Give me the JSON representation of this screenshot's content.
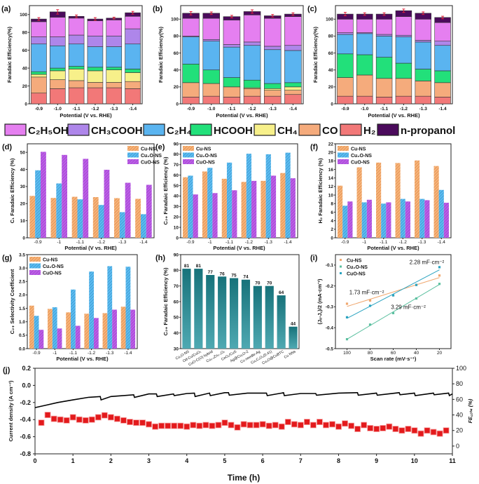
{
  "colors": {
    "C2H5OH": "#e57ff0",
    "CH3COOH": "#ae86ea",
    "C2H4": "#5ab4f0",
    "HCOOH": "#22e07a",
    "CH4": "#f7f08a",
    "CO": "#f5ab7c",
    "H2": "#f27878",
    "n-propanol": "#4b0b5c",
    "Cu-NS": "#f2a15e",
    "Cu2O-NS": "#4fb3ea",
    "CuO-NS": "#b455e0",
    "bar_h": "#1f7f86",
    "error": "#e0203a",
    "current": "#000000",
    "fe": "#e31a1c",
    "i_Cu-NS": "#f0a870",
    "i_Cu2O-NS": "#5cc0a0",
    "i_CuO-NS": "#2aa3c0"
  },
  "shared_legend": {
    "keys": [
      "C2H5OH",
      "CH3COOH",
      "C2H4",
      "HCOOH",
      "CH4",
      "CO",
      "H2",
      "n-propanol"
    ],
    "labels": [
      "C₂H₅OH",
      "CH₃COOH",
      "C₂H₄",
      "HCOOH",
      "CH₄",
      "CO",
      "H₂",
      "n-propanol"
    ]
  },
  "chart_data": [
    {
      "panel": "(a)",
      "type": "bar",
      "stacked": true,
      "ylabel": "Faradaic Efficiency(%)",
      "xlabel": "Potential (V vs. RHE)",
      "categories": [
        "-0.9",
        "-1.0",
        "-1.1",
        "-1.2",
        "-1.3",
        "-1.4"
      ],
      "ylim": [
        0,
        110
      ],
      "yticks": [
        0,
        20,
        40,
        60,
        80,
        100
      ],
      "series": [
        {
          "name": "H₂",
          "key": "H2",
          "values": [
            12,
            17,
            18,
            18,
            18,
            17
          ]
        },
        {
          "name": "CO",
          "key": "CO",
          "values": [
            18,
            10,
            8,
            6,
            6,
            8
          ]
        },
        {
          "name": "CH₄",
          "key": "CH4",
          "values": [
            3,
            10,
            13,
            13,
            14,
            10
          ]
        },
        {
          "name": "HCOOH",
          "key": "HCOOH",
          "values": [
            3,
            3,
            3,
            4,
            3,
            4
          ]
        },
        {
          "name": "C₂H₄",
          "key": "C2H4",
          "values": [
            31,
            25,
            25,
            23,
            23,
            28
          ]
        },
        {
          "name": "CH₃COOH",
          "key": "CH3COOH",
          "values": [
            8,
            10,
            10,
            12,
            12,
            17
          ]
        },
        {
          "name": "C₂H₅OH",
          "key": "C2H5OH",
          "values": [
            17,
            22,
            19,
            17,
            18,
            14
          ]
        },
        {
          "name": "n-propanol",
          "key": "n-propanol",
          "values": [
            3,
            6,
            2,
            2,
            2,
            4
          ]
        }
      ],
      "error": [
        1.5,
        2.5,
        1.5,
        1.5,
        1,
        1.5
      ]
    },
    {
      "panel": "(b)",
      "type": "bar",
      "stacked": true,
      "ylabel": "Faradaic Efficiency(%)",
      "xlabel": "Potential (V vs. RHE)",
      "categories": [
        "-0.9",
        "-1.0",
        "-1.1",
        "-1.2",
        "-1.3",
        "-1.4"
      ],
      "ylim": [
        0,
        116
      ],
      "yticks": [
        0,
        20,
        40,
        60,
        80,
        100
      ],
      "series": [
        {
          "name": "H₂",
          "key": "H2",
          "values": [
            8,
            9,
            8,
            9,
            9,
            11
          ]
        },
        {
          "name": "CO",
          "key": "CO",
          "values": [
            17,
            15,
            12,
            9,
            7,
            5
          ]
        },
        {
          "name": "CH₄",
          "key": "CH4",
          "values": [
            0,
            0,
            0,
            1,
            2,
            4
          ]
        },
        {
          "name": "HCOOH",
          "key": "HCOOH",
          "values": [
            22,
            16,
            11,
            9,
            6,
            5
          ]
        },
        {
          "name": "C₂H₄",
          "key": "C2H4",
          "values": [
            32,
            34,
            36,
            41,
            40,
            38
          ]
        },
        {
          "name": "CH₃COOH",
          "key": "CH3COOH",
          "values": [
            1,
            2,
            3,
            4,
            4,
            6
          ]
        },
        {
          "name": "C₂H₅OH",
          "key": "C2H5OH",
          "values": [
            21,
            25,
            29,
            32,
            33,
            34
          ]
        },
        {
          "name": "n-propanol",
          "key": "n-propanol",
          "values": [
            6,
            6,
            4,
            4,
            3,
            3
          ]
        }
      ],
      "error": [
        2,
        1.5,
        1.5,
        2,
        1.5,
        1.5
      ]
    },
    {
      "panel": "(c)",
      "type": "bar",
      "stacked": true,
      "ylabel": "Faradaic Efficiency(%)",
      "xlabel": "Potential (V vs. RHE)",
      "categories": [
        "-0.9",
        "-1.0",
        "-1.1",
        "-1.2",
        "-1.3",
        "-1.4"
      ],
      "ylim": [
        0,
        116
      ],
      "yticks": [
        0,
        20,
        40,
        60,
        80,
        100
      ],
      "series": [
        {
          "name": "H₂",
          "key": "H2",
          "values": [
            9,
            9,
            8,
            9,
            9,
            8
          ]
        },
        {
          "name": "CO",
          "key": "CO",
          "values": [
            22,
            25,
            22,
            21,
            18,
            17
          ]
        },
        {
          "name": "CH₄",
          "key": "CH4",
          "values": [
            0,
            0,
            0,
            0,
            0,
            0
          ]
        },
        {
          "name": "HCOOH",
          "key": "HCOOH",
          "values": [
            28,
            24,
            25,
            18,
            14,
            14
          ]
        },
        {
          "name": "C₂H₄",
          "key": "C2H4",
          "values": [
            23,
            25,
            25,
            31,
            32,
            30
          ]
        },
        {
          "name": "CH₃COOH",
          "key": "CH3COOH",
          "values": [
            2,
            1,
            2,
            2,
            2,
            5
          ]
        },
        {
          "name": "C₂H₅OH",
          "key": "C2H5OH",
          "values": [
            16,
            16,
            18,
            22,
            25,
            22
          ]
        },
        {
          "name": "n-propanol",
          "key": "n-propanol",
          "values": [
            6,
            6,
            6,
            7,
            7,
            6
          ]
        }
      ],
      "error": [
        2,
        1.5,
        1.5,
        2,
        1.5,
        1.5
      ]
    },
    {
      "panel": "(d)",
      "type": "bar",
      "ylabel": "C₁ Faradaic Efficiency (%)",
      "xlabel": "Potential (V vs. RHE)",
      "legend": "top-right",
      "categories": [
        "-0.9",
        "-1",
        "-1.1",
        "-1.2",
        "-1.3",
        "-1.4"
      ],
      "ylim": [
        0,
        55
      ],
      "yticks": [
        0,
        10,
        20,
        30,
        40,
        50
      ],
      "series": [
        {
          "name": "Cu-NS",
          "values": [
            24.5,
            23.3,
            24,
            23.8,
            23.2,
            22.8
          ]
        },
        {
          "name": "Cu₂O-NS",
          "values": [
            39.5,
            31.8,
            22.5,
            19.2,
            15,
            13.8
          ]
        },
        {
          "name": "CuO-NS",
          "values": [
            50.3,
            48.5,
            46.2,
            39.8,
            32.2,
            31
          ]
        }
      ]
    },
    {
      "panel": "(e)",
      "type": "bar",
      "ylabel": "C₂₊ Faradaic Efficiency (%)",
      "xlabel": "Potential (V vs. RHE)",
      "legend": "top-left",
      "categories": [
        "-0.9",
        "-1",
        "-1.1",
        "-1.2",
        "-1.3",
        "-1.4"
      ],
      "ylim": [
        0,
        90
      ],
      "yticks": [
        0,
        10,
        20,
        30,
        40,
        50,
        60,
        70,
        80,
        90
      ],
      "series": [
        {
          "name": "Cu-NS",
          "values": [
            58,
            63.5,
            56.5,
            53.5,
            54.5,
            62
          ]
        },
        {
          "name": "Cu₂O-NS",
          "values": [
            59.5,
            67,
            72,
            80.5,
            80,
            81.5
          ]
        },
        {
          "name": "CuO-NS",
          "values": [
            41.5,
            42.8,
            45.5,
            54.5,
            59.5,
            57
          ]
        }
      ]
    },
    {
      "panel": "(f)",
      "type": "bar",
      "ylabel": "H₂ Faradaic Efficiency (%)",
      "xlabel": "Potential (V vs. RHE)",
      "legend": "top-left",
      "categories": [
        "-0.9",
        "-1",
        "-1.1",
        "-1.2",
        "-1.3",
        "-1.4"
      ],
      "ylim": [
        0,
        22
      ],
      "yticks": [
        0,
        2,
        4,
        6,
        8,
        10,
        12,
        14,
        16,
        18,
        20,
        22
      ],
      "series": [
        {
          "name": "Cu-NS",
          "values": [
            12.2,
            16.5,
            17.6,
            17.5,
            18.1,
            16.8
          ]
        },
        {
          "name": "Cu₂O-NS",
          "values": [
            7.5,
            8.3,
            8.0,
            9.1,
            9.1,
            11.2
          ]
        },
        {
          "name": "CuO-NS",
          "values": [
            8.5,
            8.9,
            8.3,
            8.5,
            8.8,
            8.2
          ]
        }
      ]
    },
    {
      "panel": "(g)",
      "type": "bar",
      "ylabel": "C₂₊ Selectivity Coefficient",
      "xlabel": "Potential (V vs. RHE)",
      "legend": "top-left",
      "categories": [
        "-0.9",
        "-1",
        "-1.1",
        "-1.2",
        "-1.3",
        "-1.4"
      ],
      "ylim": [
        0,
        3.5
      ],
      "yticks": [
        0,
        0.5,
        1,
        1.5,
        2,
        2.5,
        3,
        3.5
      ],
      "series": [
        {
          "name": "Cu-NS",
          "values": [
            1.6,
            1.48,
            1.35,
            1.3,
            1.32,
            1.56
          ]
        },
        {
          "name": "Cu₂O-NS",
          "values": [
            1.22,
            1.54,
            2.2,
            2.87,
            3.07,
            3.05
          ]
        },
        {
          "name": "CuO-NS",
          "values": [
            0.7,
            0.75,
            0.85,
            1.14,
            1.45,
            1.45
          ]
        }
      ]
    },
    {
      "panel": "(h)",
      "type": "bar",
      "ylabel": "C₂₊ Faradaic Efficiency (%)",
      "xlabel": "",
      "categories": [
        "Cu₂O-NS",
        "Od-Cu/CuOₓ",
        "CuO-C(O) hybrid",
        "Cu₀.₉Zn₀.₁Oₓ",
        "CeO₂/CuS",
        "Ag@Cu₂O-2",
        "Cu needle-Ag",
        "Cu₂C₂O₄(0.41)",
        "Cu₂O@CuBTC",
        "Cu NNs"
      ],
      "values": [
        81,
        81,
        77,
        76,
        75,
        74,
        70,
        70,
        64,
        44
      ],
      "data_labels": [
        "81",
        "81",
        "77",
        "76",
        "75",
        "74",
        "70",
        "70",
        "64",
        "44"
      ],
      "ylim": [
        30,
        90
      ],
      "yticks": [
        30,
        40,
        50,
        60,
        70,
        80,
        90
      ]
    },
    {
      "panel": "(i)",
      "type": "scatter",
      "ylabel": "(Jₐ-J꜀)/2 (mA·cm⁻²)",
      "xlabel": "Scan rate (mV·s⁻¹)",
      "legend": "top-left",
      "xlim": [
        110,
        10
      ],
      "xticks": [
        100,
        80,
        60,
        40,
        20
      ],
      "ylim": [
        -0.5,
        -0.05
      ],
      "yticks": [
        -0.5,
        -0.4,
        -0.3,
        -0.2,
        -0.1
      ],
      "x": [
        100,
        80,
        60,
        40,
        20
      ],
      "series": [
        {
          "name": "Cu-NS",
          "key": "i_Cu-NS",
          "values": [
            -0.285,
            -0.27,
            -0.245,
            -0.195,
            -0.15
          ],
          "annotation": "1.73 mF·cm⁻²"
        },
        {
          "name": "Cu₂O-NS",
          "key": "i_Cu2O-NS",
          "values": [
            -0.455,
            -0.385,
            -0.33,
            -0.26,
            -0.19
          ],
          "annotation": "3.29 mF·cm⁻²"
        },
        {
          "name": "CuO-NS",
          "key": "i_CuO-NS",
          "values": [
            -0.35,
            -0.295,
            -0.245,
            -0.195,
            -0.11
          ],
          "annotation": "2.28 mF·cm⁻²"
        }
      ]
    },
    {
      "panel": "(j)",
      "type": "line",
      "xlabel": "Time (h)",
      "ylabel": "Current density (A cm⁻²)",
      "y2label": "FE꜀₂ₕ₄ (%)",
      "xlim": [
        0,
        11
      ],
      "xticks": [
        0,
        1,
        2,
        3,
        4,
        5,
        6,
        7,
        8,
        9,
        10,
        11
      ],
      "ylim": [
        -0.8,
        0.2
      ],
      "yticks": [
        -0.8,
        -0.6,
        -0.4,
        -0.2,
        0.0
      ],
      "ytick_labels": [
        "-0.8",
        "-0.6",
        "-0.4",
        "-0.2",
        "0.0",
        "0.2"
      ],
      "y2lim": [
        -10,
        100
      ],
      "y2ticks": [
        0,
        20,
        40,
        60,
        80,
        100
      ],
      "current_density": {
        "t": [
          0,
          0.3,
          0.6,
          1,
          1.4,
          1.72,
          1.74,
          2,
          2.6,
          2.62,
          3,
          3.2,
          3.22,
          3.65,
          3.67,
          4,
          4.2,
          4.22,
          4.6,
          4.62,
          5,
          5.1,
          5.12,
          5.6,
          6,
          6.1,
          6.12,
          6.5,
          6.55,
          6.57,
          7,
          7.4,
          7.42,
          8,
          8.5,
          8.52,
          9,
          9.02,
          9.6,
          9.62,
          10,
          10.02,
          10.5,
          10.52,
          10.9,
          10.92,
          11
        ],
        "j": [
          -0.26,
          -0.23,
          -0.2,
          -0.17,
          -0.14,
          -0.13,
          -0.17,
          -0.13,
          -0.11,
          -0.14,
          -0.1,
          -0.1,
          -0.13,
          -0.1,
          -0.12,
          -0.095,
          -0.09,
          -0.13,
          -0.09,
          -0.12,
          -0.085,
          -0.085,
          -0.115,
          -0.09,
          -0.09,
          -0.09,
          -0.12,
          -0.09,
          -0.085,
          -0.12,
          -0.095,
          -0.095,
          -0.115,
          -0.09,
          -0.085,
          -0.115,
          -0.09,
          -0.115,
          -0.085,
          -0.11,
          -0.09,
          -0.12,
          -0.09,
          -0.11,
          -0.09,
          -0.12,
          -0.1
        ]
      },
      "fe_c2h4": {
        "t_step_h": 0.1667,
        "values": [
          30,
          40,
          35,
          34,
          33,
          37,
          34,
          33,
          34,
          37,
          39.5,
          37,
          35,
          33,
          31,
          30,
          30,
          28,
          25,
          26,
          26,
          26,
          26,
          25,
          27,
          26,
          27,
          26,
          27,
          30,
          27,
          24,
          28,
          27,
          27,
          28,
          26,
          27,
          25,
          31,
          28,
          27,
          31,
          27,
          31,
          27,
          28,
          25,
          29,
          26,
          22,
          27,
          23,
          22,
          23,
          25,
          22,
          20,
          22,
          20,
          16,
          20,
          18,
          16,
          20
        ]
      }
    }
  ]
}
